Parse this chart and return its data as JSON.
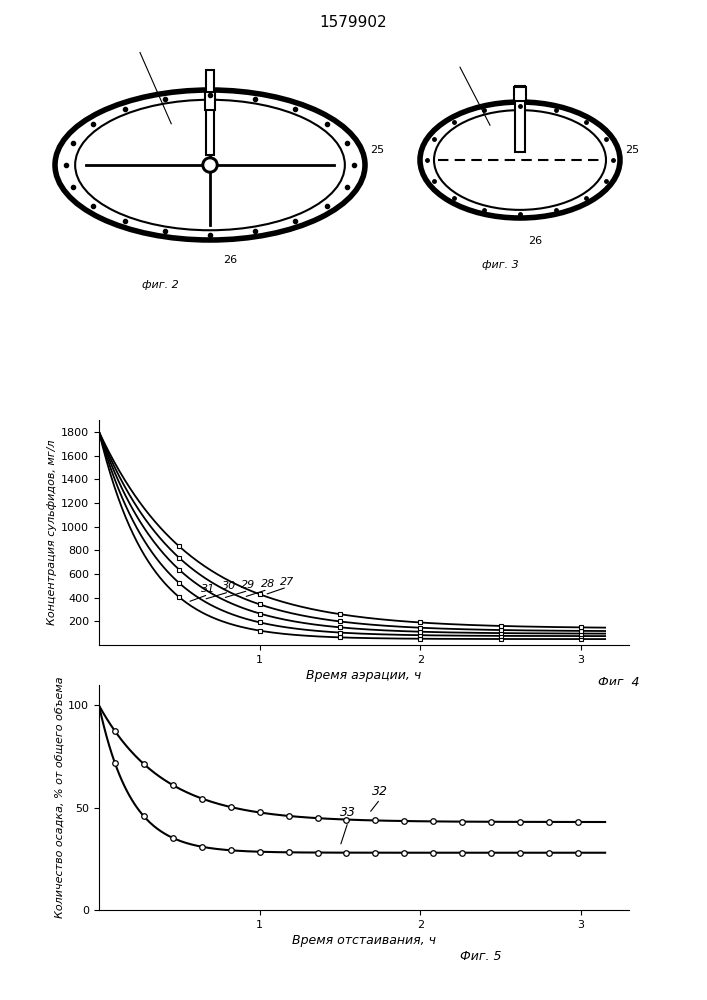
{
  "title": "1579902",
  "fig4_xlabel": "Время аэрации, ч",
  "fig4_ylabel": "Концентрация сульфидов, мг/л",
  "fig4_caption": "Фиг. 4",
  "fig5_xlabel": "Время отстаивания, ч",
  "fig5_ylabel": "Количество осадка, % от общего объема",
  "fig5_caption": "Фиг. 5",
  "fig4_yticks": [
    200,
    400,
    600,
    800,
    1000,
    1200,
    1400,
    1600,
    1800
  ],
  "fig4_xticks": [
    1,
    2,
    3
  ],
  "fig5_yticks": [
    0,
    50,
    100
  ],
  "fig5_xticks": [
    1,
    2,
    3
  ],
  "curve_labels_fig4": [
    "31",
    "30",
    "29",
    "28",
    "27"
  ],
  "curve_labels_fig5": [
    "33",
    "32"
  ],
  "bg_color": "#ffffff"
}
